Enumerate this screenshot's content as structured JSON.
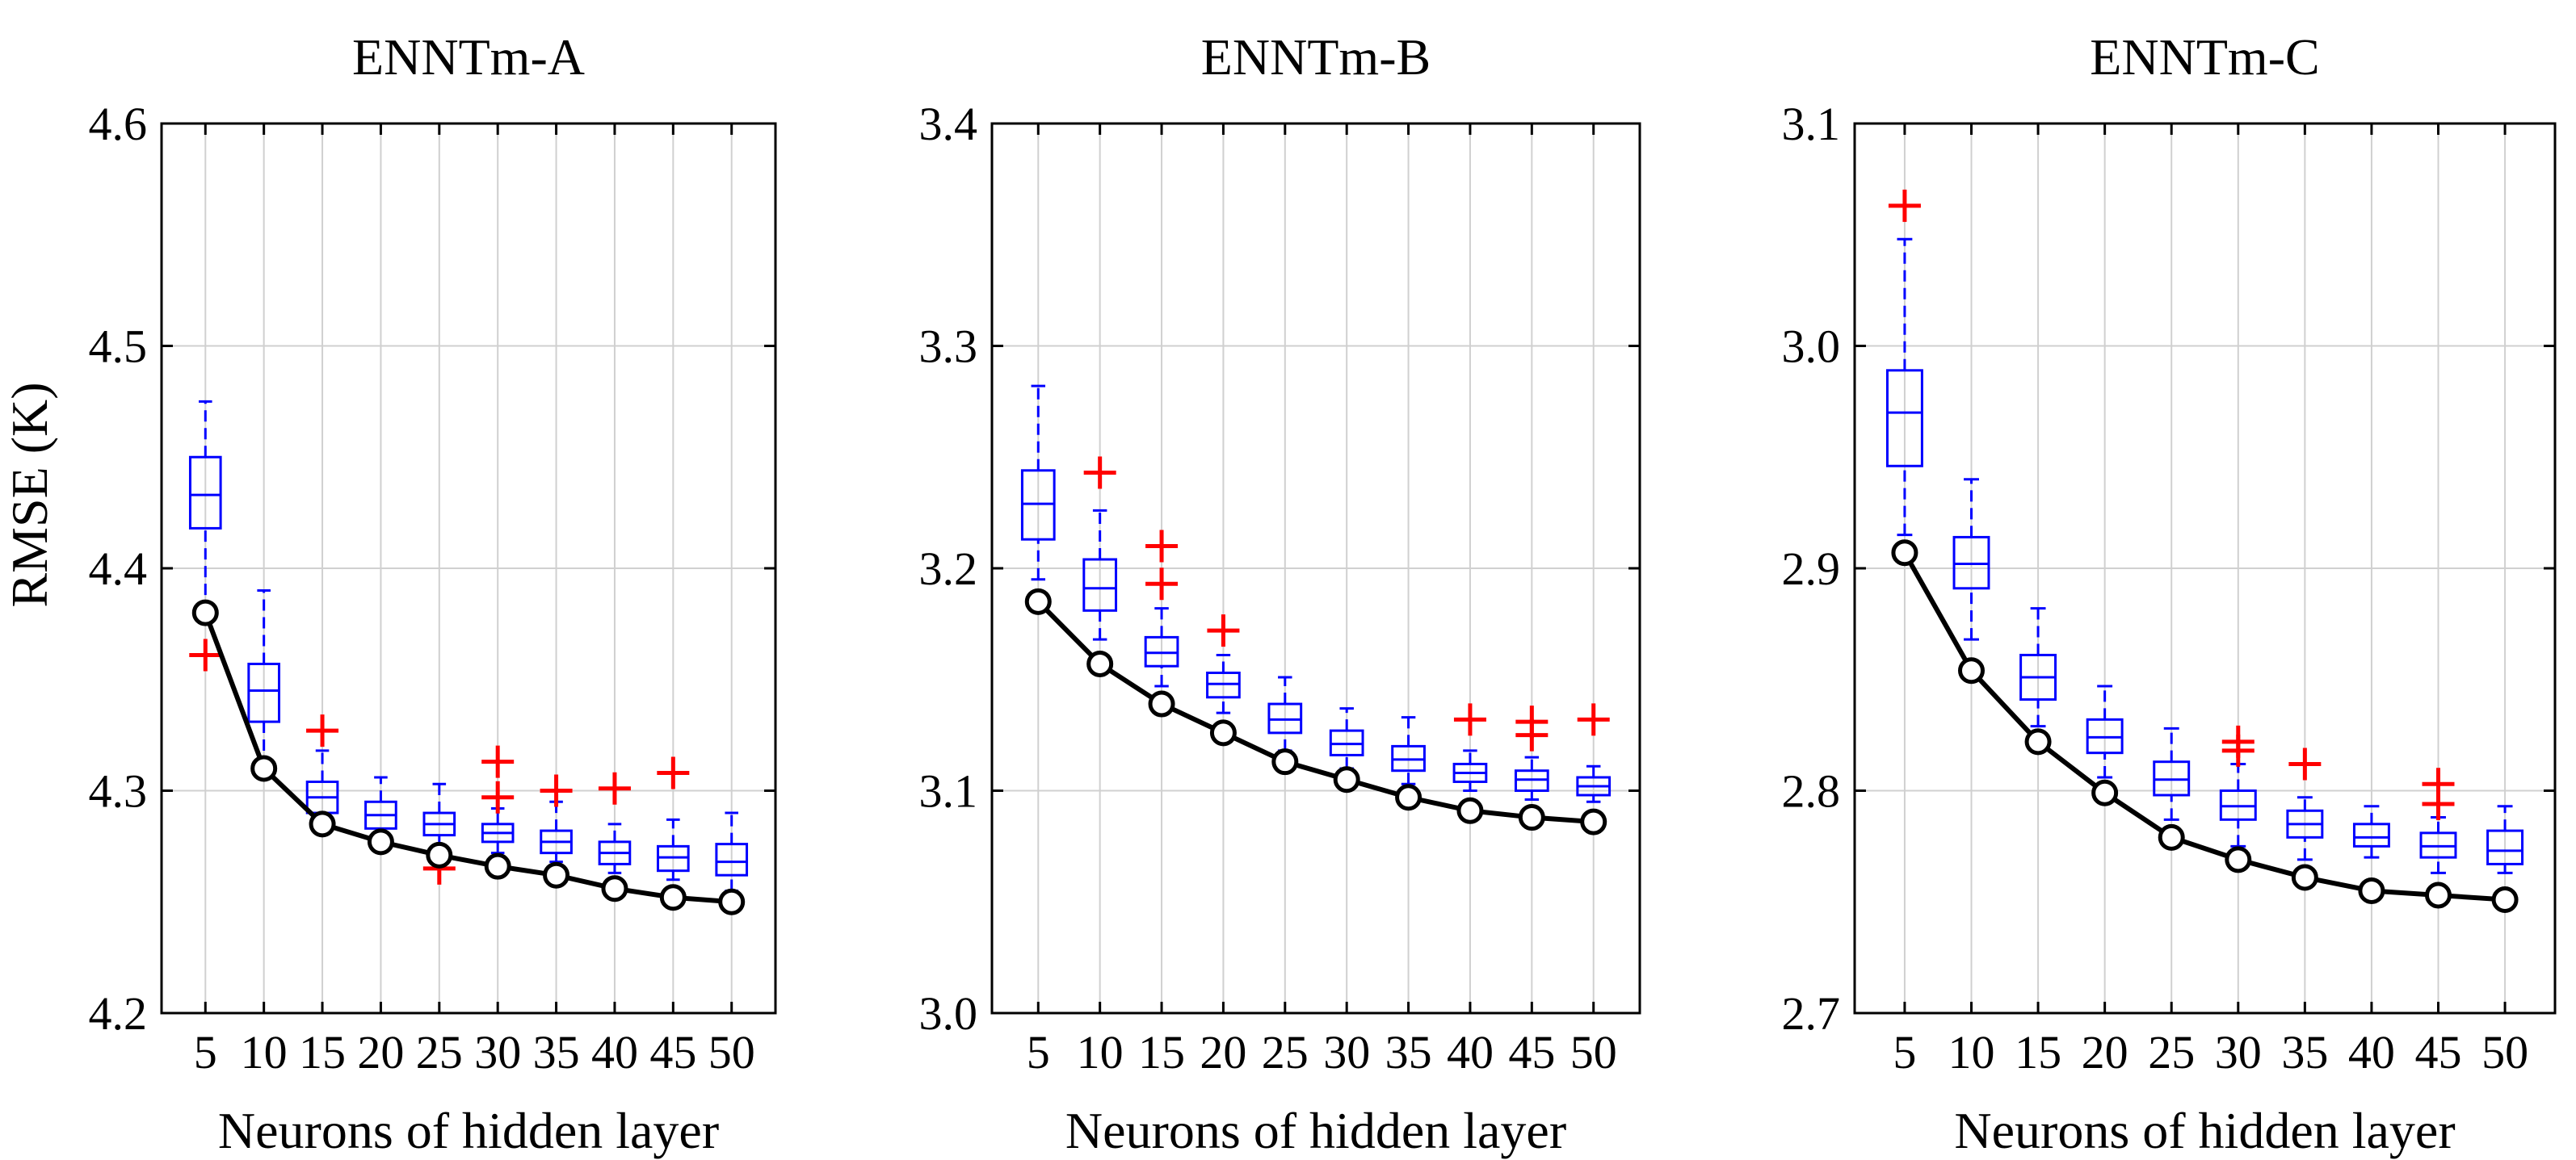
{
  "colors": {
    "box": "#0000ff",
    "outlier": "#ff0000",
    "best_line": "#000000",
    "grid": "#d0d0d0"
  },
  "y_axis_label": "RMSE (K)",
  "chart_data": [
    {
      "type": "box",
      "title": "ENNTm-A",
      "xlabel": "Neurons of hidden layer",
      "ylabel": "RMSE (K)",
      "ylim": [
        4.2,
        4.6
      ],
      "yticks": [
        "4.2",
        "4.3",
        "4.4",
        "4.5",
        "4.6"
      ],
      "categories": [
        "5",
        "10",
        "15",
        "20",
        "25",
        "30",
        "35",
        "40",
        "45",
        "50"
      ],
      "boxes": [
        {
          "min": 4.38,
          "q1": 4.418,
          "median": 4.433,
          "q3": 4.45,
          "max": 4.475,
          "outliers": [
            4.361
          ]
        },
        {
          "min": 4.31,
          "q1": 4.331,
          "median": 4.345,
          "q3": 4.357,
          "max": 4.39,
          "outliers": []
        },
        {
          "min": 4.283,
          "q1": 4.29,
          "median": 4.297,
          "q3": 4.304,
          "max": 4.318,
          "outliers": [
            4.327
          ]
        },
        {
          "min": 4.277,
          "q1": 4.283,
          "median": 4.289,
          "q3": 4.295,
          "max": 4.306,
          "outliers": []
        },
        {
          "min": 4.275,
          "q1": 4.28,
          "median": 4.285,
          "q3": 4.29,
          "max": 4.303,
          "outliers": [
            4.265
          ]
        },
        {
          "min": 4.272,
          "q1": 4.277,
          "median": 4.281,
          "q3": 4.285,
          "max": 4.292,
          "outliers": [
            4.297,
            4.313
          ]
        },
        {
          "min": 4.268,
          "q1": 4.272,
          "median": 4.277,
          "q3": 4.282,
          "max": 4.295,
          "outliers": [
            4.3
          ]
        },
        {
          "min": 4.263,
          "q1": 4.267,
          "median": 4.272,
          "q3": 4.277,
          "max": 4.285,
          "outliers": [
            4.301
          ]
        },
        {
          "min": 4.26,
          "q1": 4.264,
          "median": 4.27,
          "q3": 4.275,
          "max": 4.287,
          "outliers": [
            4.308
          ]
        },
        {
          "min": 4.255,
          "q1": 4.262,
          "median": 4.268,
          "q3": 4.276,
          "max": 4.29,
          "outliers": []
        }
      ],
      "line": [
        4.38,
        4.31,
        4.285,
        4.277,
        4.271,
        4.266,
        4.262,
        4.256,
        4.252,
        4.25
      ]
    },
    {
      "type": "box",
      "title": "ENNTm-B",
      "xlabel": "Neurons of hidden layer",
      "ylabel": "",
      "ylim": [
        3.0,
        3.4
      ],
      "yticks": [
        "3.0",
        "3.1",
        "3.2",
        "3.3",
        "3.4"
      ],
      "categories": [
        "5",
        "10",
        "15",
        "20",
        "25",
        "30",
        "35",
        "40",
        "45",
        "50"
      ],
      "boxes": [
        {
          "min": 3.195,
          "q1": 3.213,
          "median": 3.229,
          "q3": 3.244,
          "max": 3.282,
          "outliers": []
        },
        {
          "min": 3.168,
          "q1": 3.181,
          "median": 3.191,
          "q3": 3.204,
          "max": 3.226,
          "outliers": [
            3.243
          ]
        },
        {
          "min": 3.147,
          "q1": 3.156,
          "median": 3.162,
          "q3": 3.169,
          "max": 3.182,
          "outliers": [
            3.193,
            3.21
          ]
        },
        {
          "min": 3.135,
          "q1": 3.142,
          "median": 3.148,
          "q3": 3.153,
          "max": 3.161,
          "outliers": [
            3.172
          ]
        },
        {
          "min": 3.118,
          "q1": 3.126,
          "median": 3.132,
          "q3": 3.139,
          "max": 3.151,
          "outliers": []
        },
        {
          "min": 3.11,
          "q1": 3.116,
          "median": 3.121,
          "q3": 3.127,
          "max": 3.137,
          "outliers": []
        },
        {
          "min": 3.103,
          "q1": 3.109,
          "median": 3.114,
          "q3": 3.12,
          "max": 3.133,
          "outliers": []
        },
        {
          "min": 3.1,
          "q1": 3.104,
          "median": 3.108,
          "q3": 3.112,
          "max": 3.118,
          "outliers": [
            3.132
          ]
        },
        {
          "min": 3.096,
          "q1": 3.1,
          "median": 3.105,
          "q3": 3.109,
          "max": 3.115,
          "outliers": [
            3.125,
            3.131
          ]
        },
        {
          "min": 3.095,
          "q1": 3.098,
          "median": 3.102,
          "q3": 3.106,
          "max": 3.111,
          "outliers": [
            3.132
          ]
        }
      ],
      "line": [
        3.185,
        3.157,
        3.139,
        3.126,
        3.113,
        3.105,
        3.097,
        3.091,
        3.088,
        3.086
      ]
    },
    {
      "type": "box",
      "title": "ENNTm-C",
      "xlabel": "Neurons of hidden layer",
      "ylabel": "",
      "ylim": [
        2.7,
        3.1
      ],
      "yticks": [
        "2.7",
        "2.8",
        "2.9",
        "3.0",
        "3.1"
      ],
      "categories": [
        "5",
        "10",
        "15",
        "20",
        "25",
        "30",
        "35",
        "40",
        "45",
        "50"
      ],
      "boxes": [
        {
          "min": 2.915,
          "q1": 2.946,
          "median": 2.97,
          "q3": 2.989,
          "max": 3.048,
          "outliers": [
            3.063
          ]
        },
        {
          "min": 2.868,
          "q1": 2.891,
          "median": 2.902,
          "q3": 2.914,
          "max": 2.94,
          "outliers": []
        },
        {
          "min": 2.829,
          "q1": 2.841,
          "median": 2.851,
          "q3": 2.861,
          "max": 2.882,
          "outliers": []
        },
        {
          "min": 2.806,
          "q1": 2.817,
          "median": 2.824,
          "q3": 2.832,
          "max": 2.847,
          "outliers": []
        },
        {
          "min": 2.787,
          "q1": 2.798,
          "median": 2.805,
          "q3": 2.813,
          "max": 2.828,
          "outliers": []
        },
        {
          "min": 2.775,
          "q1": 2.787,
          "median": 2.793,
          "q3": 2.8,
          "max": 2.812,
          "outliers": [
            2.818,
            2.822
          ]
        },
        {
          "min": 2.769,
          "q1": 2.779,
          "median": 2.785,
          "q3": 2.791,
          "max": 2.797,
          "outliers": [
            2.812
          ]
        },
        {
          "min": 2.77,
          "q1": 2.775,
          "median": 2.779,
          "q3": 2.785,
          "max": 2.793,
          "outliers": []
        },
        {
          "min": 2.763,
          "q1": 2.77,
          "median": 2.775,
          "q3": 2.781,
          "max": 2.788,
          "outliers": [
            2.794,
            2.803
          ]
        },
        {
          "min": 2.763,
          "q1": 2.767,
          "median": 2.773,
          "q3": 2.782,
          "max": 2.793,
          "outliers": []
        }
      ],
      "line": [
        2.907,
        2.854,
        2.822,
        2.799,
        2.779,
        2.769,
        2.761,
        2.755,
        2.753,
        2.751
      ]
    }
  ]
}
